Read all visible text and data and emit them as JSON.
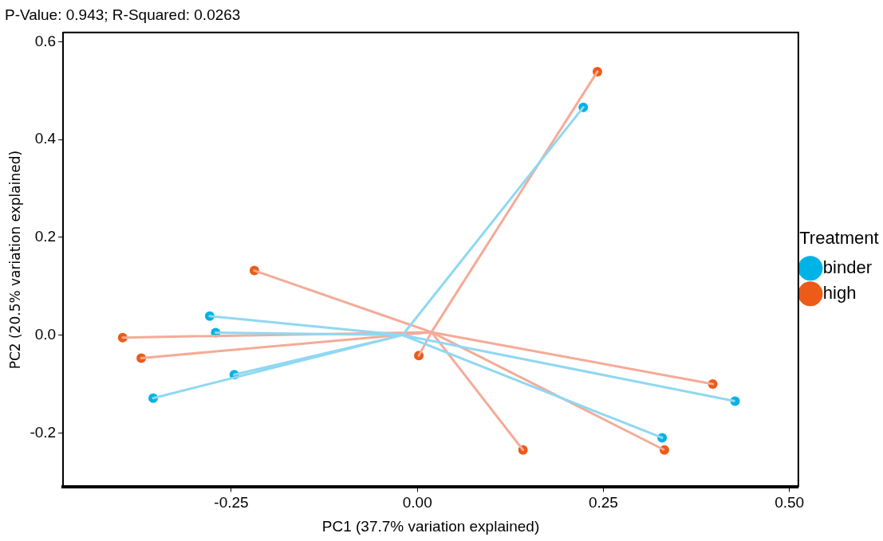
{
  "chart_data": {
    "type": "scatter",
    "title": "P-Value: 0.943; R-Squared: 0.0263",
    "xlabel": "PC1 (37.7% variation explained)",
    "ylabel": "PC2 (20.5% variation explained)",
    "legend_title": "Treatment",
    "xlim": [
      -0.476,
      0.512
    ],
    "ylim": [
      -0.311,
      0.619
    ],
    "xticks": [
      {
        "value": -0.25,
        "label": "-0.25"
      },
      {
        "value": 0,
        "label": "0.00"
      },
      {
        "value": 0.25,
        "label": "0.25"
      },
      {
        "value": 0.5,
        "label": "0.50"
      }
    ],
    "yticks": [
      -0.2,
      {
        "value": 0,
        "label": "0.0"
      },
      0.2,
      0.4,
      0.6
    ],
    "grid": false,
    "legend": "right",
    "marker": "circle",
    "series": [
      {
        "type": "line",
        "color": "#8fd8f2",
        "marker": "none",
        "x": [
          -0.02,
          0.223,
          -0.02,
          -0.279,
          -0.02,
          -0.271,
          -0.02,
          -0.246,
          -0.02,
          -0.355,
          -0.02,
          0.329,
          -0.02,
          0.427
        ],
        "values": [
          0.0,
          0.466,
          0.0,
          0.039,
          0.0,
          0.005,
          0.0,
          -0.081,
          0.0,
          -0.129,
          0.0,
          -0.21,
          0.0,
          -0.135
        ]
      },
      {
        "type": "line",
        "color": "#f4ab98",
        "marker": "none",
        "x": [
          0.019,
          0.242,
          0.019,
          -0.219,
          0.019,
          -0.396,
          0.019,
          -0.371,
          0.019,
          0.002,
          0.019,
          0.397,
          0.019,
          0.142,
          0.019,
          0.332
        ],
        "values": [
          0.006,
          0.539,
          0.006,
          0.132,
          0.006,
          -0.005,
          0.006,
          -0.047,
          0.006,
          -0.042,
          0.006,
          -0.1,
          0.006,
          -0.235,
          0.006,
          -0.235
        ]
      },
      {
        "name": "binder",
        "color": "#00b3e6",
        "x": [
          0.223,
          -0.279,
          -0.271,
          -0.246,
          -0.355,
          0.329,
          0.427
        ],
        "values": [
          0.466,
          0.039,
          0.005,
          -0.081,
          -0.129,
          -0.21,
          -0.135
        ]
      },
      {
        "name": "high",
        "color": "#ec5b17",
        "x": [
          0.242,
          -0.219,
          -0.396,
          -0.371,
          0.002,
          0.397,
          0.142,
          0.332
        ],
        "values": [
          0.539,
          0.132,
          -0.005,
          -0.047,
          -0.042,
          -0.1,
          -0.235,
          -0.235
        ]
      }
    ]
  }
}
